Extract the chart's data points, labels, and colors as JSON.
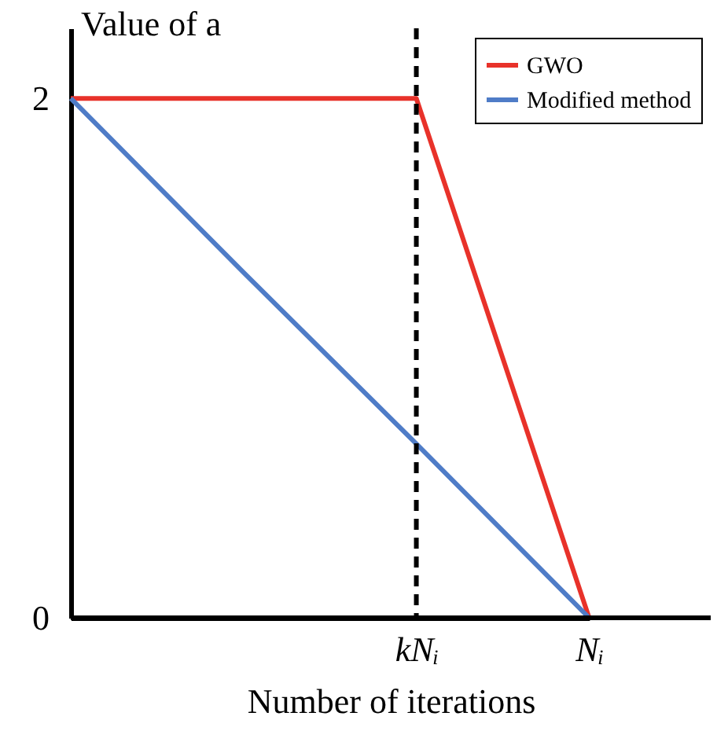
{
  "chart_data": {
    "type": "line",
    "xlabel": "Number of iterations",
    "ylabel": "Value of a",
    "categories": [
      null,
      null,
      "kNᵢ",
      "Nᵢ"
    ],
    "ylim": [
      0,
      2.27
    ],
    "yticks": [
      0,
      2
    ],
    "series": [
      {
        "name": "GWO",
        "color": "#e8322a",
        "values": [
          2,
          2,
          2,
          0
        ]
      },
      {
        "name": "Modified method",
        "color": "#4f7cc7",
        "values": [
          2,
          1.33,
          0.67,
          0
        ]
      }
    ],
    "ref_lines": [
      {
        "axis": "x",
        "value": "kNᵢ",
        "color": "#000000",
        "line_style": "dashed"
      }
    ],
    "legend": "top right",
    "grid": false
  }
}
